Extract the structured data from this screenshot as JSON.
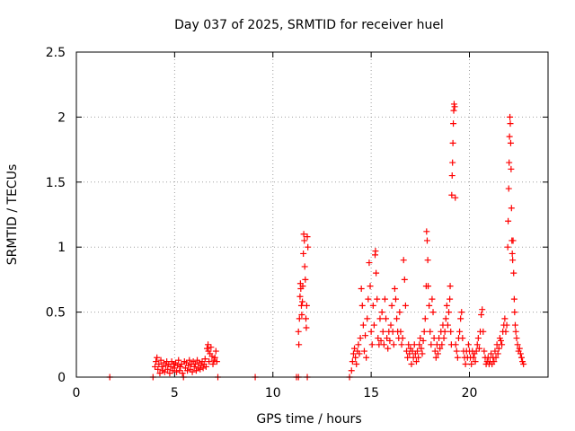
{
  "chart_data": {
    "type": "scatter",
    "title": "Day 037 of 2025, SRMTID for receiver huel",
    "xlabel": "GPS time / hours",
    "ylabel": "SRMTID / TECUs",
    "xlim": [
      0,
      24
    ],
    "ylim": [
      0,
      2.5
    ],
    "x_ticks": [
      0,
      5,
      10,
      15,
      20
    ],
    "x_tick_labels": [
      "0",
      "5",
      "10",
      "15",
      "20"
    ],
    "y_ticks": [
      0,
      0.5,
      1,
      1.5,
      2,
      2.5
    ],
    "y_tick_labels": [
      "0",
      "0.5",
      "1",
      "1.5",
      "2",
      "2.5"
    ],
    "grid": true,
    "marker": "+",
    "series": [
      {
        "name": "SRMTID",
        "color": "#ff0000",
        "points": [
          [
            1.7,
            0.0
          ],
          [
            3.9,
            0.0
          ],
          [
            4.0,
            0.08
          ],
          [
            4.05,
            0.12
          ],
          [
            4.1,
            0.15
          ],
          [
            4.15,
            0.06
          ],
          [
            4.2,
            0.1
          ],
          [
            4.25,
            0.03
          ],
          [
            4.3,
            0.13
          ],
          [
            4.35,
            0.08
          ],
          [
            4.4,
            0.05
          ],
          [
            4.45,
            0.11
          ],
          [
            4.5,
            0.04
          ],
          [
            4.55,
            0.09
          ],
          [
            4.6,
            0.12
          ],
          [
            4.65,
            0.06
          ],
          [
            4.7,
            0.1
          ],
          [
            4.75,
            0.03
          ],
          [
            4.8,
            0.08
          ],
          [
            4.85,
            0.12
          ],
          [
            4.9,
            0.05
          ],
          [
            4.95,
            0.1
          ],
          [
            5.0,
            0.07
          ],
          [
            5.05,
            0.11
          ],
          [
            5.1,
            0.04
          ],
          [
            5.15,
            0.09
          ],
          [
            5.2,
            0.13
          ],
          [
            5.25,
            0.05
          ],
          [
            5.3,
            0.08
          ],
          [
            5.35,
            0.1
          ],
          [
            5.4,
            0.03
          ],
          [
            5.45,
            0.0
          ],
          [
            5.5,
            0.12
          ],
          [
            5.55,
            0.07
          ],
          [
            5.6,
            0.11
          ],
          [
            5.65,
            0.05
          ],
          [
            5.7,
            0.09
          ],
          [
            5.75,
            0.13
          ],
          [
            5.8,
            0.06
          ],
          [
            5.85,
            0.1
          ],
          [
            5.9,
            0.04
          ],
          [
            5.95,
            0.12
          ],
          [
            6.0,
            0.08
          ],
          [
            6.05,
            0.1
          ],
          [
            6.1,
            0.05
          ],
          [
            6.15,
            0.13
          ],
          [
            6.2,
            0.07
          ],
          [
            6.25,
            0.11
          ],
          [
            6.3,
            0.06
          ],
          [
            6.35,
            0.09
          ],
          [
            6.4,
            0.12
          ],
          [
            6.45,
            0.07
          ],
          [
            6.5,
            0.1
          ],
          [
            6.55,
            0.14
          ],
          [
            6.6,
            0.08
          ],
          [
            6.65,
            0.22
          ],
          [
            6.7,
            0.25
          ],
          [
            6.72,
            0.2
          ],
          [
            6.75,
            0.12
          ],
          [
            6.8,
            0.18
          ],
          [
            6.85,
            0.23
          ],
          [
            6.9,
            0.16
          ],
          [
            6.95,
            0.1
          ],
          [
            7.0,
            0.13
          ],
          [
            7.05,
            0.15
          ],
          [
            7.1,
            0.2
          ],
          [
            7.15,
            0.12
          ],
          [
            7.2,
            0.0
          ],
          [
            9.1,
            0.0
          ],
          [
            11.2,
            0.0
          ],
          [
            11.3,
            0.0
          ],
          [
            11.75,
            0.0
          ],
          [
            11.3,
            0.35
          ],
          [
            11.32,
            0.25
          ],
          [
            11.35,
            0.45
          ],
          [
            11.38,
            0.62
          ],
          [
            11.4,
            0.72
          ],
          [
            11.42,
            0.68
          ],
          [
            11.45,
            0.55
          ],
          [
            11.47,
            0.48
          ],
          [
            11.5,
            0.58
          ],
          [
            11.52,
            0.7
          ],
          [
            11.55,
            0.95
          ],
          [
            11.57,
            1.1
          ],
          [
            11.6,
            1.05
          ],
          [
            11.62,
            0.85
          ],
          [
            11.65,
            0.75
          ],
          [
            11.68,
            0.45
          ],
          [
            11.7,
            0.38
          ],
          [
            11.72,
            0.55
          ],
          [
            11.75,
            1.08
          ],
          [
            11.78,
            1.0
          ],
          [
            13.9,
            0.0
          ],
          [
            14.0,
            0.05
          ],
          [
            14.05,
            0.12
          ],
          [
            14.1,
            0.18
          ],
          [
            14.15,
            0.22
          ],
          [
            14.2,
            0.15
          ],
          [
            14.25,
            0.1
          ],
          [
            14.3,
            0.2
          ],
          [
            14.35,
            0.25
          ],
          [
            14.4,
            0.18
          ],
          [
            14.45,
            0.3
          ],
          [
            14.5,
            0.68
          ],
          [
            14.55,
            0.55
          ],
          [
            14.6,
            0.4
          ],
          [
            14.65,
            0.2
          ],
          [
            14.7,
            0.32
          ],
          [
            14.75,
            0.15
          ],
          [
            14.8,
            0.45
          ],
          [
            14.85,
            0.6
          ],
          [
            14.9,
            0.88
          ],
          [
            14.95,
            0.7
          ],
          [
            15.0,
            0.35
          ],
          [
            15.05,
            0.25
          ],
          [
            15.1,
            0.55
          ],
          [
            15.15,
            0.4
          ],
          [
            15.2,
            0.94
          ],
          [
            15.22,
            0.97
          ],
          [
            15.25,
            0.8
          ],
          [
            15.3,
            0.6
          ],
          [
            15.35,
            0.3
          ],
          [
            15.4,
            0.25
          ],
          [
            15.45,
            0.45
          ],
          [
            15.5,
            0.28
          ],
          [
            15.55,
            0.5
          ],
          [
            15.6,
            0.35
          ],
          [
            15.65,
            0.25
          ],
          [
            15.7,
            0.6
          ],
          [
            15.75,
            0.45
          ],
          [
            15.8,
            0.3
          ],
          [
            15.85,
            0.22
          ],
          [
            15.9,
            0.35
          ],
          [
            15.95,
            0.28
          ],
          [
            16.0,
            0.4
          ],
          [
            16.05,
            0.55
          ],
          [
            16.1,
            0.35
          ],
          [
            16.15,
            0.25
          ],
          [
            16.2,
            0.68
          ],
          [
            16.25,
            0.6
          ],
          [
            16.3,
            0.45
          ],
          [
            16.35,
            0.35
          ],
          [
            16.4,
            0.3
          ],
          [
            16.45,
            0.5
          ],
          [
            16.5,
            0.35
          ],
          [
            16.55,
            0.25
          ],
          [
            16.6,
            0.3
          ],
          [
            16.65,
            0.9
          ],
          [
            16.7,
            0.75
          ],
          [
            16.75,
            0.55
          ],
          [
            16.8,
            0.2
          ],
          [
            16.85,
            0.15
          ],
          [
            16.9,
            0.25
          ],
          [
            16.95,
            0.18
          ],
          [
            17.0,
            0.22
          ],
          [
            17.05,
            0.1
          ],
          [
            17.1,
            0.2
          ],
          [
            17.15,
            0.15
          ],
          [
            17.2,
            0.25
          ],
          [
            17.25,
            0.18
          ],
          [
            17.3,
            0.12
          ],
          [
            17.35,
            0.2
          ],
          [
            17.4,
            0.15
          ],
          [
            17.45,
            0.25
          ],
          [
            17.5,
            0.3
          ],
          [
            17.55,
            0.22
          ],
          [
            17.6,
            0.18
          ],
          [
            17.65,
            0.28
          ],
          [
            17.7,
            0.35
          ],
          [
            17.75,
            0.45
          ],
          [
            17.8,
            0.7
          ],
          [
            17.82,
            1.12
          ],
          [
            17.85,
            1.05
          ],
          [
            17.88,
            0.9
          ],
          [
            17.9,
            0.7
          ],
          [
            17.95,
            0.55
          ],
          [
            18.0,
            0.35
          ],
          [
            18.05,
            0.25
          ],
          [
            18.1,
            0.6
          ],
          [
            18.15,
            0.5
          ],
          [
            18.2,
            0.3
          ],
          [
            18.25,
            0.2
          ],
          [
            18.3,
            0.15
          ],
          [
            18.35,
            0.25
          ],
          [
            18.4,
            0.18
          ],
          [
            18.45,
            0.3
          ],
          [
            18.5,
            0.22
          ],
          [
            18.55,
            0.35
          ],
          [
            18.6,
            0.25
          ],
          [
            18.65,
            0.4
          ],
          [
            18.7,
            0.3
          ],
          [
            18.75,
            0.35
          ],
          [
            18.8,
            0.45
          ],
          [
            18.85,
            0.55
          ],
          [
            18.9,
            0.4
          ],
          [
            18.95,
            0.5
          ],
          [
            19.0,
            0.6
          ],
          [
            19.02,
            0.7
          ],
          [
            19.05,
            0.35
          ],
          [
            19.08,
            0.25
          ],
          [
            19.1,
            1.4
          ],
          [
            19.12,
            1.55
          ],
          [
            19.14,
            1.65
          ],
          [
            19.16,
            1.8
          ],
          [
            19.18,
            1.95
          ],
          [
            19.2,
            2.05
          ],
          [
            19.22,
            2.1
          ],
          [
            19.25,
            2.08
          ],
          [
            19.28,
            1.38
          ],
          [
            19.3,
            0.25
          ],
          [
            19.35,
            0.2
          ],
          [
            19.4,
            0.15
          ],
          [
            19.45,
            0.3
          ],
          [
            19.5,
            0.35
          ],
          [
            19.55,
            0.45
          ],
          [
            19.6,
            0.5
          ],
          [
            19.65,
            0.3
          ],
          [
            19.7,
            0.2
          ],
          [
            19.75,
            0.15
          ],
          [
            19.8,
            0.1
          ],
          [
            19.85,
            0.2
          ],
          [
            19.9,
            0.15
          ],
          [
            19.95,
            0.25
          ],
          [
            20.0,
            0.2
          ],
          [
            20.05,
            0.15
          ],
          [
            20.1,
            0.1
          ],
          [
            20.15,
            0.2
          ],
          [
            20.2,
            0.15
          ],
          [
            20.25,
            0.18
          ],
          [
            20.3,
            0.12
          ],
          [
            20.35,
            0.2
          ],
          [
            20.4,
            0.25
          ],
          [
            20.45,
            0.3
          ],
          [
            20.5,
            0.22
          ],
          [
            20.55,
            0.35
          ],
          [
            20.6,
            0.48
          ],
          [
            20.65,
            0.52
          ],
          [
            20.7,
            0.35
          ],
          [
            20.75,
            0.2
          ],
          [
            20.8,
            0.15
          ],
          [
            20.85,
            0.1
          ],
          [
            20.9,
            0.12
          ],
          [
            20.95,
            0.15
          ],
          [
            21.0,
            0.1
          ],
          [
            21.05,
            0.12
          ],
          [
            21.1,
            0.18
          ],
          [
            21.15,
            0.1
          ],
          [
            21.2,
            0.15
          ],
          [
            21.25,
            0.12
          ],
          [
            21.3,
            0.2
          ],
          [
            21.35,
            0.15
          ],
          [
            21.4,
            0.25
          ],
          [
            21.45,
            0.18
          ],
          [
            21.5,
            0.22
          ],
          [
            21.55,
            0.3
          ],
          [
            21.6,
            0.28
          ],
          [
            21.65,
            0.25
          ],
          [
            21.7,
            0.35
          ],
          [
            21.75,
            0.4
          ],
          [
            21.8,
            0.45
          ],
          [
            21.85,
            0.35
          ],
          [
            21.9,
            0.4
          ],
          [
            21.95,
            1.0
          ],
          [
            21.97,
            1.2
          ],
          [
            22.0,
            1.45
          ],
          [
            22.02,
            1.65
          ],
          [
            22.04,
            1.85
          ],
          [
            22.06,
            2.0
          ],
          [
            22.08,
            1.95
          ],
          [
            22.1,
            1.8
          ],
          [
            22.12,
            1.6
          ],
          [
            22.14,
            1.3
          ],
          [
            22.16,
            1.05
          ],
          [
            22.18,
            0.95
          ],
          [
            22.2,
            0.9
          ],
          [
            22.22,
            1.05
          ],
          [
            22.25,
            0.8
          ],
          [
            22.28,
            0.6
          ],
          [
            22.3,
            0.5
          ],
          [
            22.33,
            0.4
          ],
          [
            22.36,
            0.35
          ],
          [
            22.4,
            0.3
          ],
          [
            22.45,
            0.25
          ],
          [
            22.5,
            0.2
          ],
          [
            22.55,
            0.22
          ],
          [
            22.6,
            0.18
          ],
          [
            22.65,
            0.15
          ],
          [
            22.7,
            0.12
          ],
          [
            22.75,
            0.1
          ]
        ]
      }
    ]
  }
}
